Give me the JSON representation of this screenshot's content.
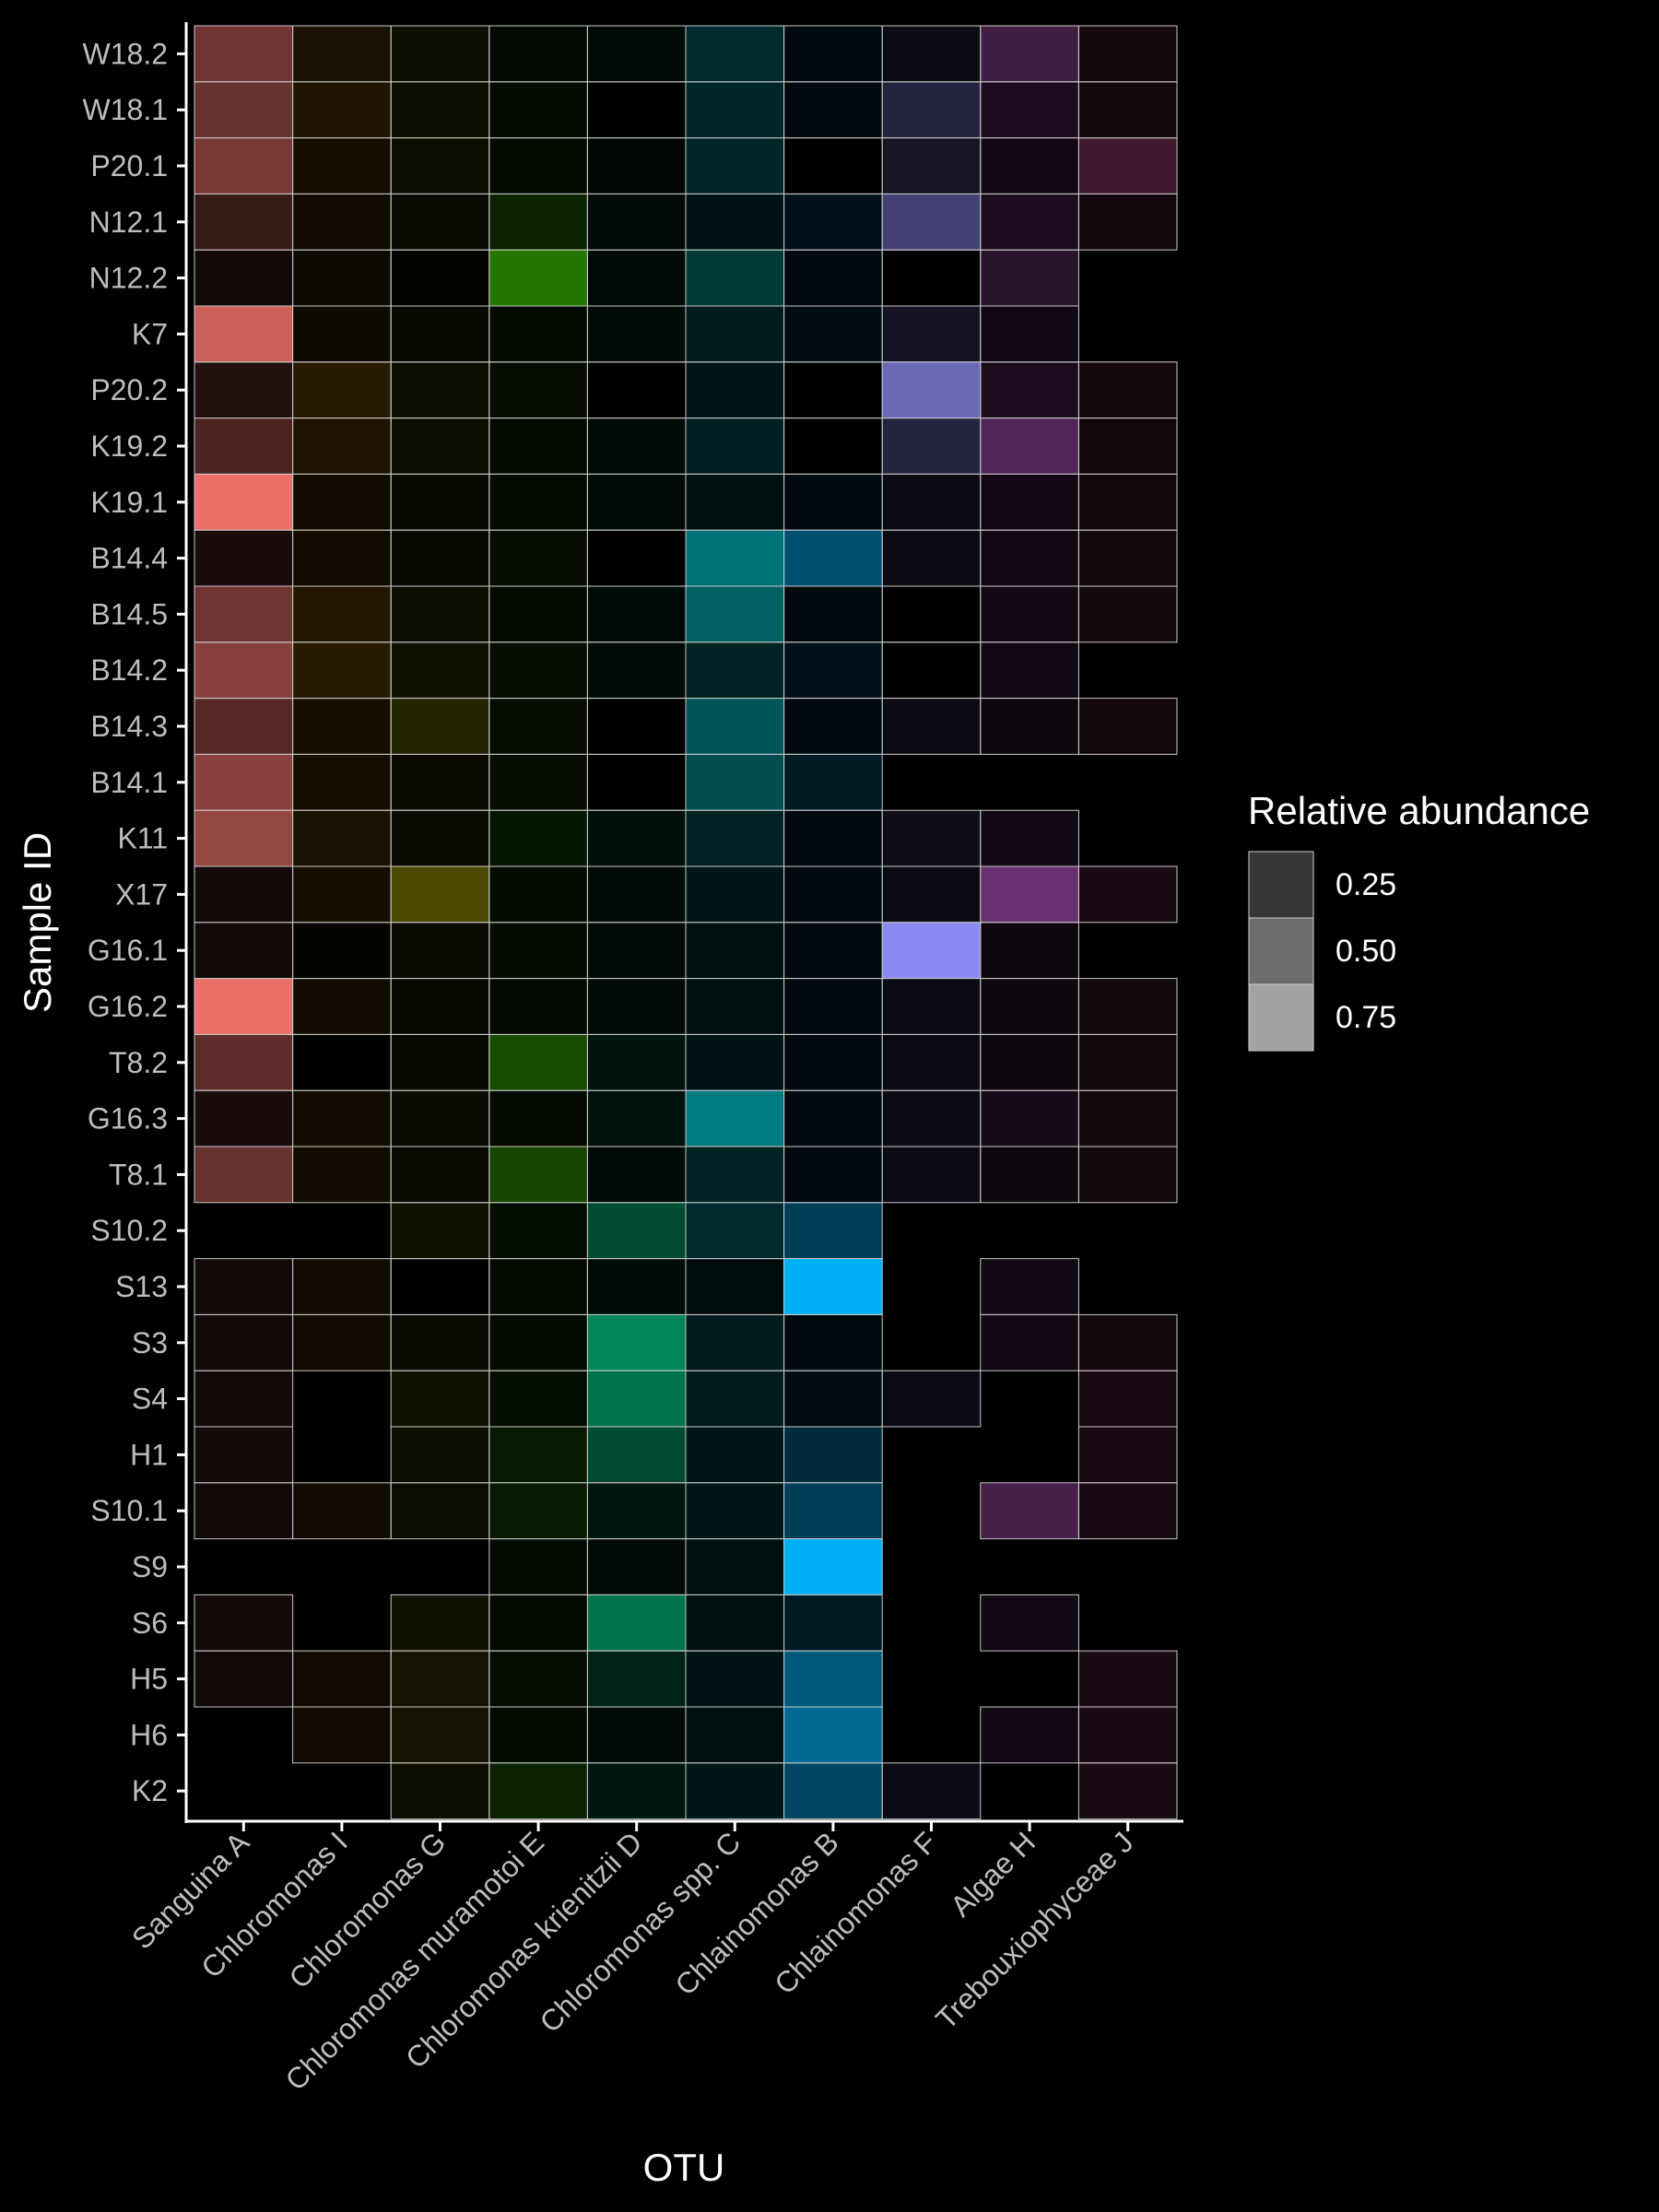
{
  "chart_data": {
    "type": "heatmap",
    "title": "",
    "xlabel": "OTU",
    "ylabel": "Sample ID",
    "legend": {
      "title": "Relative abundance",
      "position": "right",
      "breaks": [
        0.25,
        0.5,
        0.75
      ],
      "labels": [
        "0.25",
        "0.50",
        "0.75"
      ]
    },
    "grid": false,
    "otu_colors": {
      "Sanguina A": "#f8766d",
      "Chloromonas I": "#d89000",
      "Chloromonas G": "#a3a500",
      "Chloromonas muramotoi E": "#39b600",
      "Chloromonas krienitzii D": "#00bf7d",
      "Chloromonas spp. C": "#00bfc4",
      "Chlainomonas B": "#00b0f6",
      "Chlainomonas F": "#9590ff",
      "Algae H": "#e76bf3",
      "Trebouxiophyceae J": "#ff62bc"
    },
    "x_categories": [
      "Sanguina A",
      "Chloromonas I",
      "Chloromonas G",
      "Chloromonas muramotoi E",
      "Chloromonas krienitzii D",
      "Chloromonas spp. C",
      "Chlainomonas B",
      "Chlainomonas F",
      "Algae H",
      "Trebouxiophyceae J"
    ],
    "y_categories": [
      "W18.2",
      "W18.1",
      "P20.1",
      "N12.1",
      "N12.2",
      "K7",
      "P20.2",
      "K19.2",
      "K19.1",
      "B14.4",
      "B14.5",
      "B14.2",
      "B14.3",
      "B14.1",
      "K11",
      "X17",
      "G16.1",
      "G16.2",
      "T8.2",
      "G16.3",
      "T8.1",
      "S10.2",
      "S13",
      "S3",
      "S4",
      "H1",
      "S10.1",
      "S9",
      "S6",
      "H5",
      "H6",
      "K2"
    ],
    "values": [
      [
        0.45,
        0.12,
        0.08,
        0.05,
        0.05,
        0.22,
        0.05,
        0.08,
        0.28,
        0.08
      ],
      [
        0.42,
        0.15,
        0.08,
        0.06,
        0.0,
        0.2,
        0.05,
        0.25,
        0.12,
        0.08
      ],
      [
        0.48,
        0.1,
        0.08,
        0.06,
        0.04,
        0.2,
        0.0,
        0.15,
        0.08,
        0.25
      ],
      [
        0.22,
        0.08,
        0.06,
        0.2,
        0.05,
        0.1,
        0.1,
        0.45,
        0.12,
        0.08
      ],
      [
        0.08,
        0.07,
        0.02,
        0.65,
        0.06,
        0.3,
        0.06,
        0.0,
        0.18,
        null
      ],
      [
        0.82,
        0.07,
        0.05,
        0.06,
        0.06,
        0.14,
        0.08,
        0.14,
        0.08,
        null
      ],
      [
        0.14,
        0.18,
        0.08,
        0.07,
        0.0,
        0.12,
        0.0,
        0.72,
        0.12,
        0.08
      ],
      [
        0.3,
        0.14,
        0.07,
        0.06,
        0.05,
        0.16,
        0.0,
        0.25,
        0.35,
        0.08
      ],
      [
        0.95,
        0.08,
        0.05,
        0.06,
        0.05,
        0.08,
        0.06,
        0.08,
        0.08,
        0.08
      ],
      [
        0.1,
        0.08,
        0.05,
        0.07,
        0.0,
        0.6,
        0.45,
        0.08,
        0.08,
        0.08
      ],
      [
        0.45,
        0.16,
        0.08,
        0.06,
        0.06,
        0.5,
        0.06,
        0.0,
        0.08,
        0.08
      ],
      [
        0.55,
        0.18,
        0.1,
        0.07,
        0.06,
        0.18,
        0.1,
        0.0,
        0.08,
        null
      ],
      [
        0.35,
        0.1,
        0.22,
        0.07,
        0.0,
        0.45,
        0.06,
        0.08,
        0.06,
        0.08
      ],
      [
        0.55,
        0.1,
        0.06,
        0.07,
        0.0,
        0.4,
        0.15,
        null,
        null,
        null
      ],
      [
        0.6,
        0.12,
        0.06,
        0.12,
        0.08,
        0.18,
        0.06,
        0.1,
        0.08,
        null
      ],
      [
        0.08,
        0.1,
        0.45,
        0.06,
        0.06,
        0.12,
        0.06,
        0.08,
        0.45,
        0.1
      ],
      [
        0.08,
        0.02,
        0.06,
        0.06,
        0.06,
        0.08,
        0.06,
        0.95,
        0.06,
        null
      ],
      [
        0.95,
        0.08,
        0.05,
        0.05,
        0.06,
        0.08,
        0.05,
        0.08,
        0.06,
        0.08
      ],
      [
        0.38,
        0.0,
        0.05,
        0.42,
        0.1,
        0.1,
        0.06,
        0.08,
        0.06,
        0.08
      ],
      [
        0.1,
        0.08,
        0.06,
        0.06,
        0.1,
        0.65,
        0.06,
        0.08,
        0.1,
        0.08
      ],
      [
        0.42,
        0.08,
        0.06,
        0.38,
        0.05,
        0.18,
        0.06,
        0.08,
        0.06,
        0.08
      ],
      [
        null,
        null,
        0.1,
        0.08,
        0.4,
        0.22,
        0.35,
        null,
        null,
        null
      ],
      [
        0.08,
        0.08,
        0.0,
        0.06,
        0.05,
        0.06,
        1.0,
        null,
        0.08,
        null
      ],
      [
        0.08,
        0.08,
        0.06,
        0.06,
        0.7,
        0.14,
        0.06,
        null,
        0.08,
        0.08
      ],
      [
        0.08,
        null,
        0.1,
        0.08,
        0.6,
        0.14,
        0.08,
        0.08,
        null,
        0.1
      ],
      [
        0.08,
        null,
        0.07,
        0.14,
        0.4,
        0.12,
        0.25,
        null,
        null,
        0.1
      ],
      [
        0.08,
        0.08,
        0.07,
        0.14,
        0.12,
        0.12,
        0.35,
        null,
        0.3,
        0.1
      ],
      [
        null,
        null,
        null,
        0.06,
        0.06,
        0.08,
        1.0,
        null,
        null,
        null
      ],
      [
        0.08,
        null,
        0.1,
        0.06,
        0.6,
        0.08,
        0.15,
        null,
        0.08,
        null
      ],
      [
        0.08,
        0.08,
        0.12,
        0.07,
        0.18,
        0.1,
        0.5,
        null,
        null,
        0.1
      ],
      [
        null,
        0.08,
        0.12,
        0.06,
        0.06,
        0.08,
        0.6,
        null,
        0.08,
        0.1
      ],
      [
        null,
        null,
        0.08,
        0.2,
        0.12,
        0.12,
        0.4,
        0.08,
        null,
        0.1
      ]
    ]
  }
}
